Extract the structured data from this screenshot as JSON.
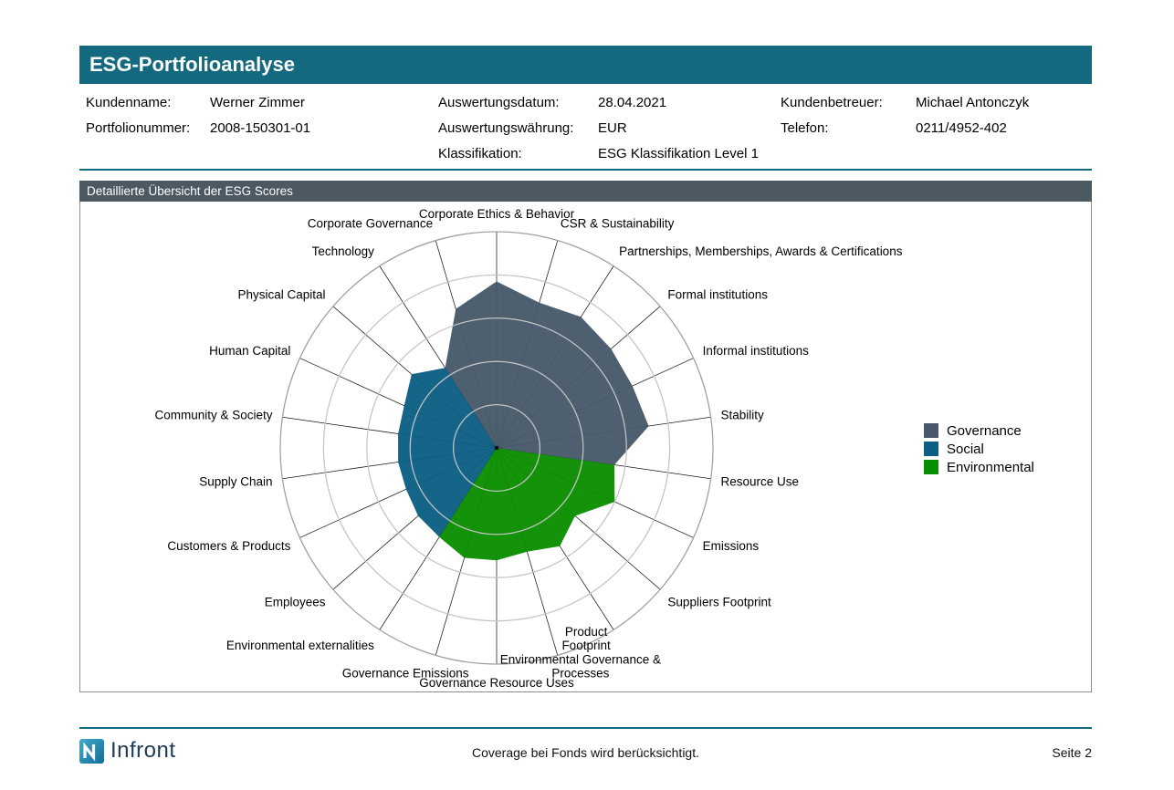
{
  "header": {
    "title": "ESG-Portfolioanalyse"
  },
  "info": {
    "col1": [
      {
        "label": "Kundenname:",
        "value": "Werner Zimmer"
      },
      {
        "label": "Portfolionummer:",
        "value": "2008-150301-01"
      }
    ],
    "col2": [
      {
        "label": "Auswertungsdatum:",
        "value": "28.04.2021"
      },
      {
        "label": "Auswertungswährung:",
        "value": "EUR"
      },
      {
        "label": "Klassifikation:",
        "value": "ESG Klassifikation Level 1"
      }
    ],
    "col3": [
      {
        "label": "Kundenbetreuer:",
        "value": "Michael Antonczyk"
      },
      {
        "label": "Telefon:",
        "value": "0211/4952-402"
      }
    ]
  },
  "section": {
    "title": "Detaillierte Übersicht der ESG Scores"
  },
  "chart_data": {
    "type": "radar",
    "title": "Detaillierte Übersicht der ESG Scores",
    "value_range": [
      0,
      100
    ],
    "rings": 5,
    "start": "top",
    "direction": "clockwise",
    "legend_position": "right",
    "axes": [
      {
        "label": "Corporate Ethics & Behavior",
        "group": "Governance",
        "value": 77
      },
      {
        "label": "CSR & Sustainability",
        "group": "Governance",
        "value": 70
      },
      {
        "label": "Partnerships, Memberships, Awards & Certifications",
        "group": "Governance",
        "value": 72
      },
      {
        "label": "Formal institutions",
        "group": "Governance",
        "value": 70
      },
      {
        "label": "Informal institutions",
        "group": "Governance",
        "value": 69
      },
      {
        "label": "Stability",
        "group": "Governance",
        "value": 71
      },
      {
        "label": "Resource Use",
        "group": "Environmental",
        "value": 55
      },
      {
        "label": "Emissions",
        "group": "Environmental",
        "value": 60
      },
      {
        "label": "Suppliers Footprint",
        "group": "Environmental",
        "value": 48
      },
      {
        "label": "Product\nFootprint",
        "group": "Environmental",
        "value": 54,
        "anchor": "middle",
        "dx": -36
      },
      {
        "label": "Environmental Governance &\nProcesses",
        "group": "Environmental",
        "value": 50,
        "anchor": "middle",
        "dx": 22
      },
      {
        "label": "Governance Resource Uses",
        "group": "Environmental",
        "value": 52
      },
      {
        "label": "Governance Emissions",
        "group": "Environmental",
        "value": 53,
        "anchor": "middle",
        "dx": -30
      },
      {
        "label": "Environmental externalities",
        "group": "Environmental",
        "value": 49
      },
      {
        "label": "Employees",
        "group": "Social",
        "value": 48
      },
      {
        "label": "Customers & Products",
        "group": "Social",
        "value": 46
      },
      {
        "label": "Supply Chain",
        "group": "Social",
        "value": 46
      },
      {
        "label": "Community & Society",
        "group": "Social",
        "value": 46
      },
      {
        "label": "Human Capital",
        "group": "Social",
        "value": 47
      },
      {
        "label": "Physical Capital",
        "group": "Social",
        "value": 52
      },
      {
        "label": "Technology",
        "group": "Social",
        "value": 44
      },
      {
        "label": "Corporate Governance",
        "group": "Governance",
        "value": 67
      }
    ],
    "series": [
      {
        "name": "Governance",
        "color": "#47596A",
        "axes": [
          20,
          21,
          0,
          1,
          2,
          3,
          4,
          5,
          6
        ]
      },
      {
        "name": "Social",
        "color": "#0B5F84",
        "axes": [
          13,
          14,
          15,
          16,
          17,
          18,
          19,
          20
        ]
      },
      {
        "name": "Environmental",
        "color": "#0A8F00",
        "axes": [
          6,
          7,
          8,
          9,
          10,
          11,
          12,
          13
        ]
      }
    ]
  },
  "legend": [
    {
      "label": "Governance",
      "color": "#47596A"
    },
    {
      "label": "Social",
      "color": "#0B5F84"
    },
    {
      "label": "Environmental",
      "color": "#0A8F00"
    }
  ],
  "footer": {
    "logo_text": "Infront",
    "note": "Coverage bei Fonds wird berücksichtigt.",
    "page": "Seite 2"
  }
}
